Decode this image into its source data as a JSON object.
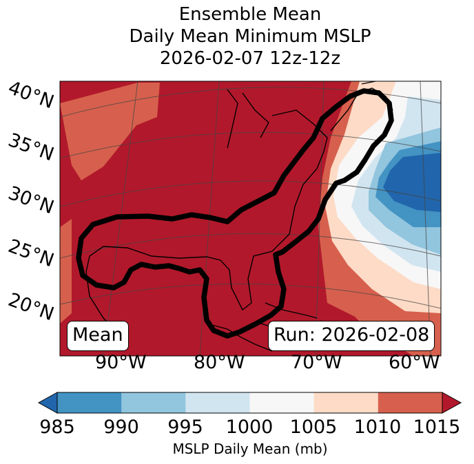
{
  "title": {
    "line1": "Ensemble Mean",
    "line2": "Daily Mean Minimum MSLP",
    "line3": "2026-02-07 12z-12z"
  },
  "map": {
    "lat_labels": [
      "40°N",
      "35°N",
      "30°N",
      "25°N",
      "20°N"
    ],
    "lon_labels": [
      "90°W",
      "80°W",
      "70°W",
      "60°W"
    ],
    "legend_box": "Mean",
    "run_box": "Run: 2026-02-08",
    "contour_color": "#000000"
  },
  "colorbar": {
    "ticks": [
      "985",
      "990",
      "995",
      "1000",
      "1005",
      "1010",
      "1015"
    ],
    "label": "MSLP Daily Mean (mb)",
    "colors": [
      "#2166ac",
      "#4393c3",
      "#92c5de",
      "#d1e5f0",
      "#f7f7f7",
      "#fddbc7",
      "#d6604d",
      "#b2182b"
    ]
  }
}
